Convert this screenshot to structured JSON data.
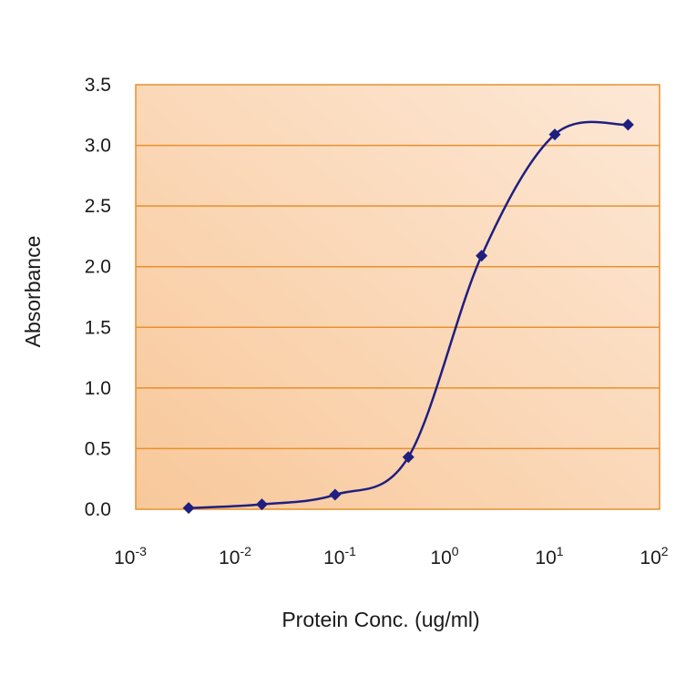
{
  "chart_data": {
    "type": "line",
    "xlabel": "Protein Conc. (ug/ml)",
    "ylabel": "Absorbance",
    "x_scale": "log10",
    "xlim": [
      0.001,
      100
    ],
    "ylim": [
      0,
      3.5
    ],
    "x_ticks": [
      {
        "base": "10",
        "exp": "-3",
        "value": 0.001
      },
      {
        "base": "10",
        "exp": "-2",
        "value": 0.01
      },
      {
        "base": "10",
        "exp": "-1",
        "value": 0.1
      },
      {
        "base": "10",
        "exp": "0",
        "value": 1
      },
      {
        "base": "10",
        "exp": "1",
        "value": 10
      },
      {
        "base": "10",
        "exp": "2",
        "value": 100
      }
    ],
    "y_ticks": [
      "0.0",
      "0.5",
      "1.0",
      "1.5",
      "2.0",
      "2.5",
      "3.0",
      "3.5"
    ],
    "grid": "horizontal",
    "series": [
      {
        "x": [
          0.0032,
          0.016,
          0.08,
          0.4,
          2,
          10,
          50
        ],
        "y": [
          0.01,
          0.04,
          0.12,
          0.43,
          2.09,
          3.09,
          3.17
        ]
      }
    ],
    "colors": {
      "line": "#1f1f80",
      "marker": "#1f1f80",
      "plot_bg_start": "#f8c89a",
      "plot_bg_end": "#fde8d6",
      "grid": "#e8902e",
      "frame": "#e8902e"
    }
  }
}
